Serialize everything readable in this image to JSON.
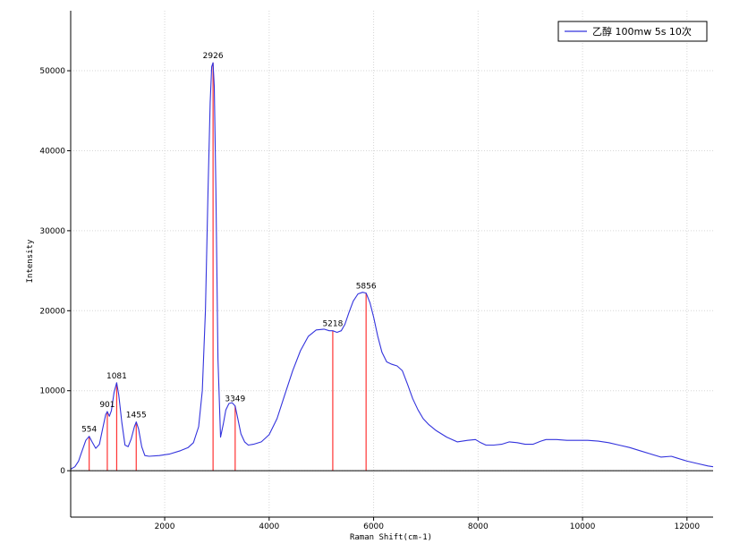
{
  "chart_data": {
    "type": "line",
    "title": "",
    "xlabel": "Raman Shift(cm-1)",
    "ylabel": "Intensity",
    "xlim": [
      200,
      12500
    ],
    "ylim": [
      -5800,
      57500
    ],
    "x_ticks": [
      2000,
      4000,
      6000,
      8000,
      10000,
      12000
    ],
    "y_ticks": [
      0,
      10000,
      20000,
      30000,
      40000,
      50000
    ],
    "grid": true,
    "legend_position": "top-right",
    "series": [
      {
        "name": "乙醇 100mw 5s 10次",
        "color": "#3333dd",
        "x": [
          200,
          280,
          350,
          420,
          490,
          554,
          610,
          680,
          750,
          820,
          870,
          901,
          940,
          980,
          1030,
          1081,
          1120,
          1180,
          1240,
          1300,
          1360,
          1420,
          1455,
          1500,
          1560,
          1620,
          1700,
          1900,
          2100,
          2300,
          2450,
          2550,
          2650,
          2720,
          2780,
          2830,
          2870,
          2900,
          2926,
          2950,
          2980,
          3020,
          3070,
          3120,
          3170,
          3230,
          3290,
          3349,
          3400,
          3460,
          3530,
          3600,
          3700,
          3850,
          4000,
          4150,
          4300,
          4450,
          4600,
          4750,
          4900,
          5050,
          5150,
          5218,
          5300,
          5380,
          5450,
          5530,
          5610,
          5700,
          5790,
          5856,
          5930,
          6000,
          6080,
          6160,
          6250,
          6350,
          6450,
          6550,
          6650,
          6750,
          6850,
          6950,
          7050,
          7200,
          7400,
          7600,
          7800,
          7950,
          8050,
          8150,
          8300,
          8450,
          8600,
          8750,
          8900,
          9050,
          9200,
          9300,
          9500,
          9700,
          9900,
          10100,
          10300,
          10500,
          10700,
          10900,
          11100,
          11300,
          11500,
          11700,
          11800,
          12000,
          12200,
          12400,
          12500
        ],
        "y": [
          200,
          500,
          1200,
          2500,
          3800,
          4300,
          3600,
          2800,
          3300,
          5500,
          7000,
          7400,
          6800,
          7500,
          9800,
          11000,
          9500,
          6000,
          3200,
          3000,
          4000,
          5500,
          6100,
          5200,
          3000,
          1900,
          1800,
          1900,
          2100,
          2500,
          2900,
          3500,
          5500,
          10000,
          20000,
          35000,
          46000,
          50500,
          51000,
          48000,
          35000,
          14000,
          4200,
          5800,
          7600,
          8400,
          8500,
          8100,
          6500,
          4600,
          3600,
          3200,
          3300,
          3600,
          4500,
          6500,
          9500,
          12500,
          15000,
          16800,
          17600,
          17700,
          17500,
          17500,
          17300,
          17500,
          18300,
          19800,
          21200,
          22100,
          22300,
          22200,
          21000,
          19200,
          16800,
          14800,
          13600,
          13300,
          13100,
          12500,
          10800,
          9000,
          7600,
          6500,
          5800,
          5000,
          4200,
          3600,
          3800,
          3900,
          3500,
          3200,
          3200,
          3300,
          3600,
          3500,
          3300,
          3300,
          3700,
          3900,
          3900,
          3800,
          3800,
          3800,
          3700,
          3500,
          3200,
          2900,
          2500,
          2100,
          1700,
          1800,
          1600,
          1200,
          900,
          600,
          500
        ]
      }
    ],
    "peaks": [
      {
        "x": 554,
        "y": 4300,
        "label": "554"
      },
      {
        "x": 901,
        "y": 7400,
        "label": "901"
      },
      {
        "x": 1081,
        "y": 11000,
        "label": "1081"
      },
      {
        "x": 1455,
        "y": 6100,
        "label": "1455"
      },
      {
        "x": 2926,
        "y": 51000,
        "label": "2926"
      },
      {
        "x": 3349,
        "y": 8100,
        "label": "3349"
      },
      {
        "x": 5218,
        "y": 17500,
        "label": "5218"
      },
      {
        "x": 5856,
        "y": 22200,
        "label": "5856"
      }
    ],
    "peak_line_color": "#ff3333",
    "grid_color": "#d6d6d6",
    "axis_color": "#000000"
  }
}
